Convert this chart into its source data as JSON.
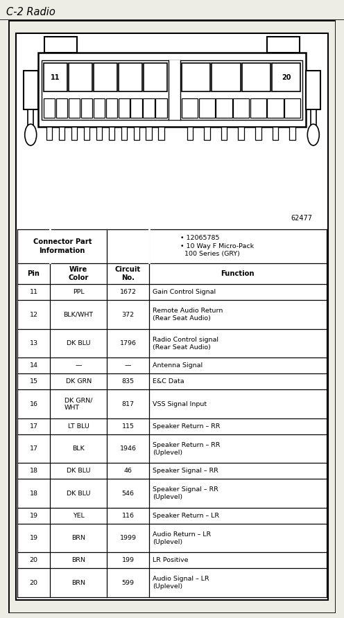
{
  "title": "C-2 Radio",
  "title_bg": "#e8e8e0",
  "diagram_part_num": "62477",
  "connector_info_left": "Connector Part\nInformation",
  "connector_info_right": "• 12065785\n• 10 Way F Micro-Pack\n  100 Series (GRY)",
  "col_headers": [
    "Pin",
    "Wire\nColor",
    "Circuit\nNo.",
    "Function"
  ],
  "rows": [
    [
      "11",
      "PPL",
      "1672",
      "Gain Control Signal"
    ],
    [
      "12",
      "BLK/WHT",
      "372",
      "Remote Audio Return\n(Rear Seat Audio)"
    ],
    [
      "13",
      "DK BLU",
      "1796",
      "Radio Control signal\n(Rear Seat Audio)"
    ],
    [
      "14",
      "—",
      "—",
      "Antenna Signal"
    ],
    [
      "15",
      "DK GRN",
      "835",
      "E&C Data"
    ],
    [
      "16",
      "DK GRN/\nWHT",
      "817",
      "VSS Signal Input"
    ],
    [
      "17",
      "LT BLU",
      "115",
      "Speaker Return – RR"
    ],
    [
      "17",
      "BLK",
      "1946",
      "Speaker Return – RR\n(Uplevel)"
    ],
    [
      "18",
      "DK BLU",
      "46",
      "Speaker Signal – RR"
    ],
    [
      "18",
      "DK BLU",
      "546",
      "Speaker Signal – RR\n(Uplevel)"
    ],
    [
      "19",
      "YEL",
      "116",
      "Speaker Return – LR"
    ],
    [
      "19",
      "BRN",
      "1999",
      "Audio Return – LR\n(Uplevel)"
    ],
    [
      "20",
      "BRN",
      "199",
      "LR Positive"
    ],
    [
      "20",
      "BRN",
      "599",
      "Audio Signal – LR\n(Uplevel)"
    ]
  ],
  "bg_color": "#ffffff",
  "outer_bg": "#eeede5",
  "border_color": "#000000",
  "text_color": "#000000",
  "fig_width": 4.96,
  "fig_height": 8.92
}
